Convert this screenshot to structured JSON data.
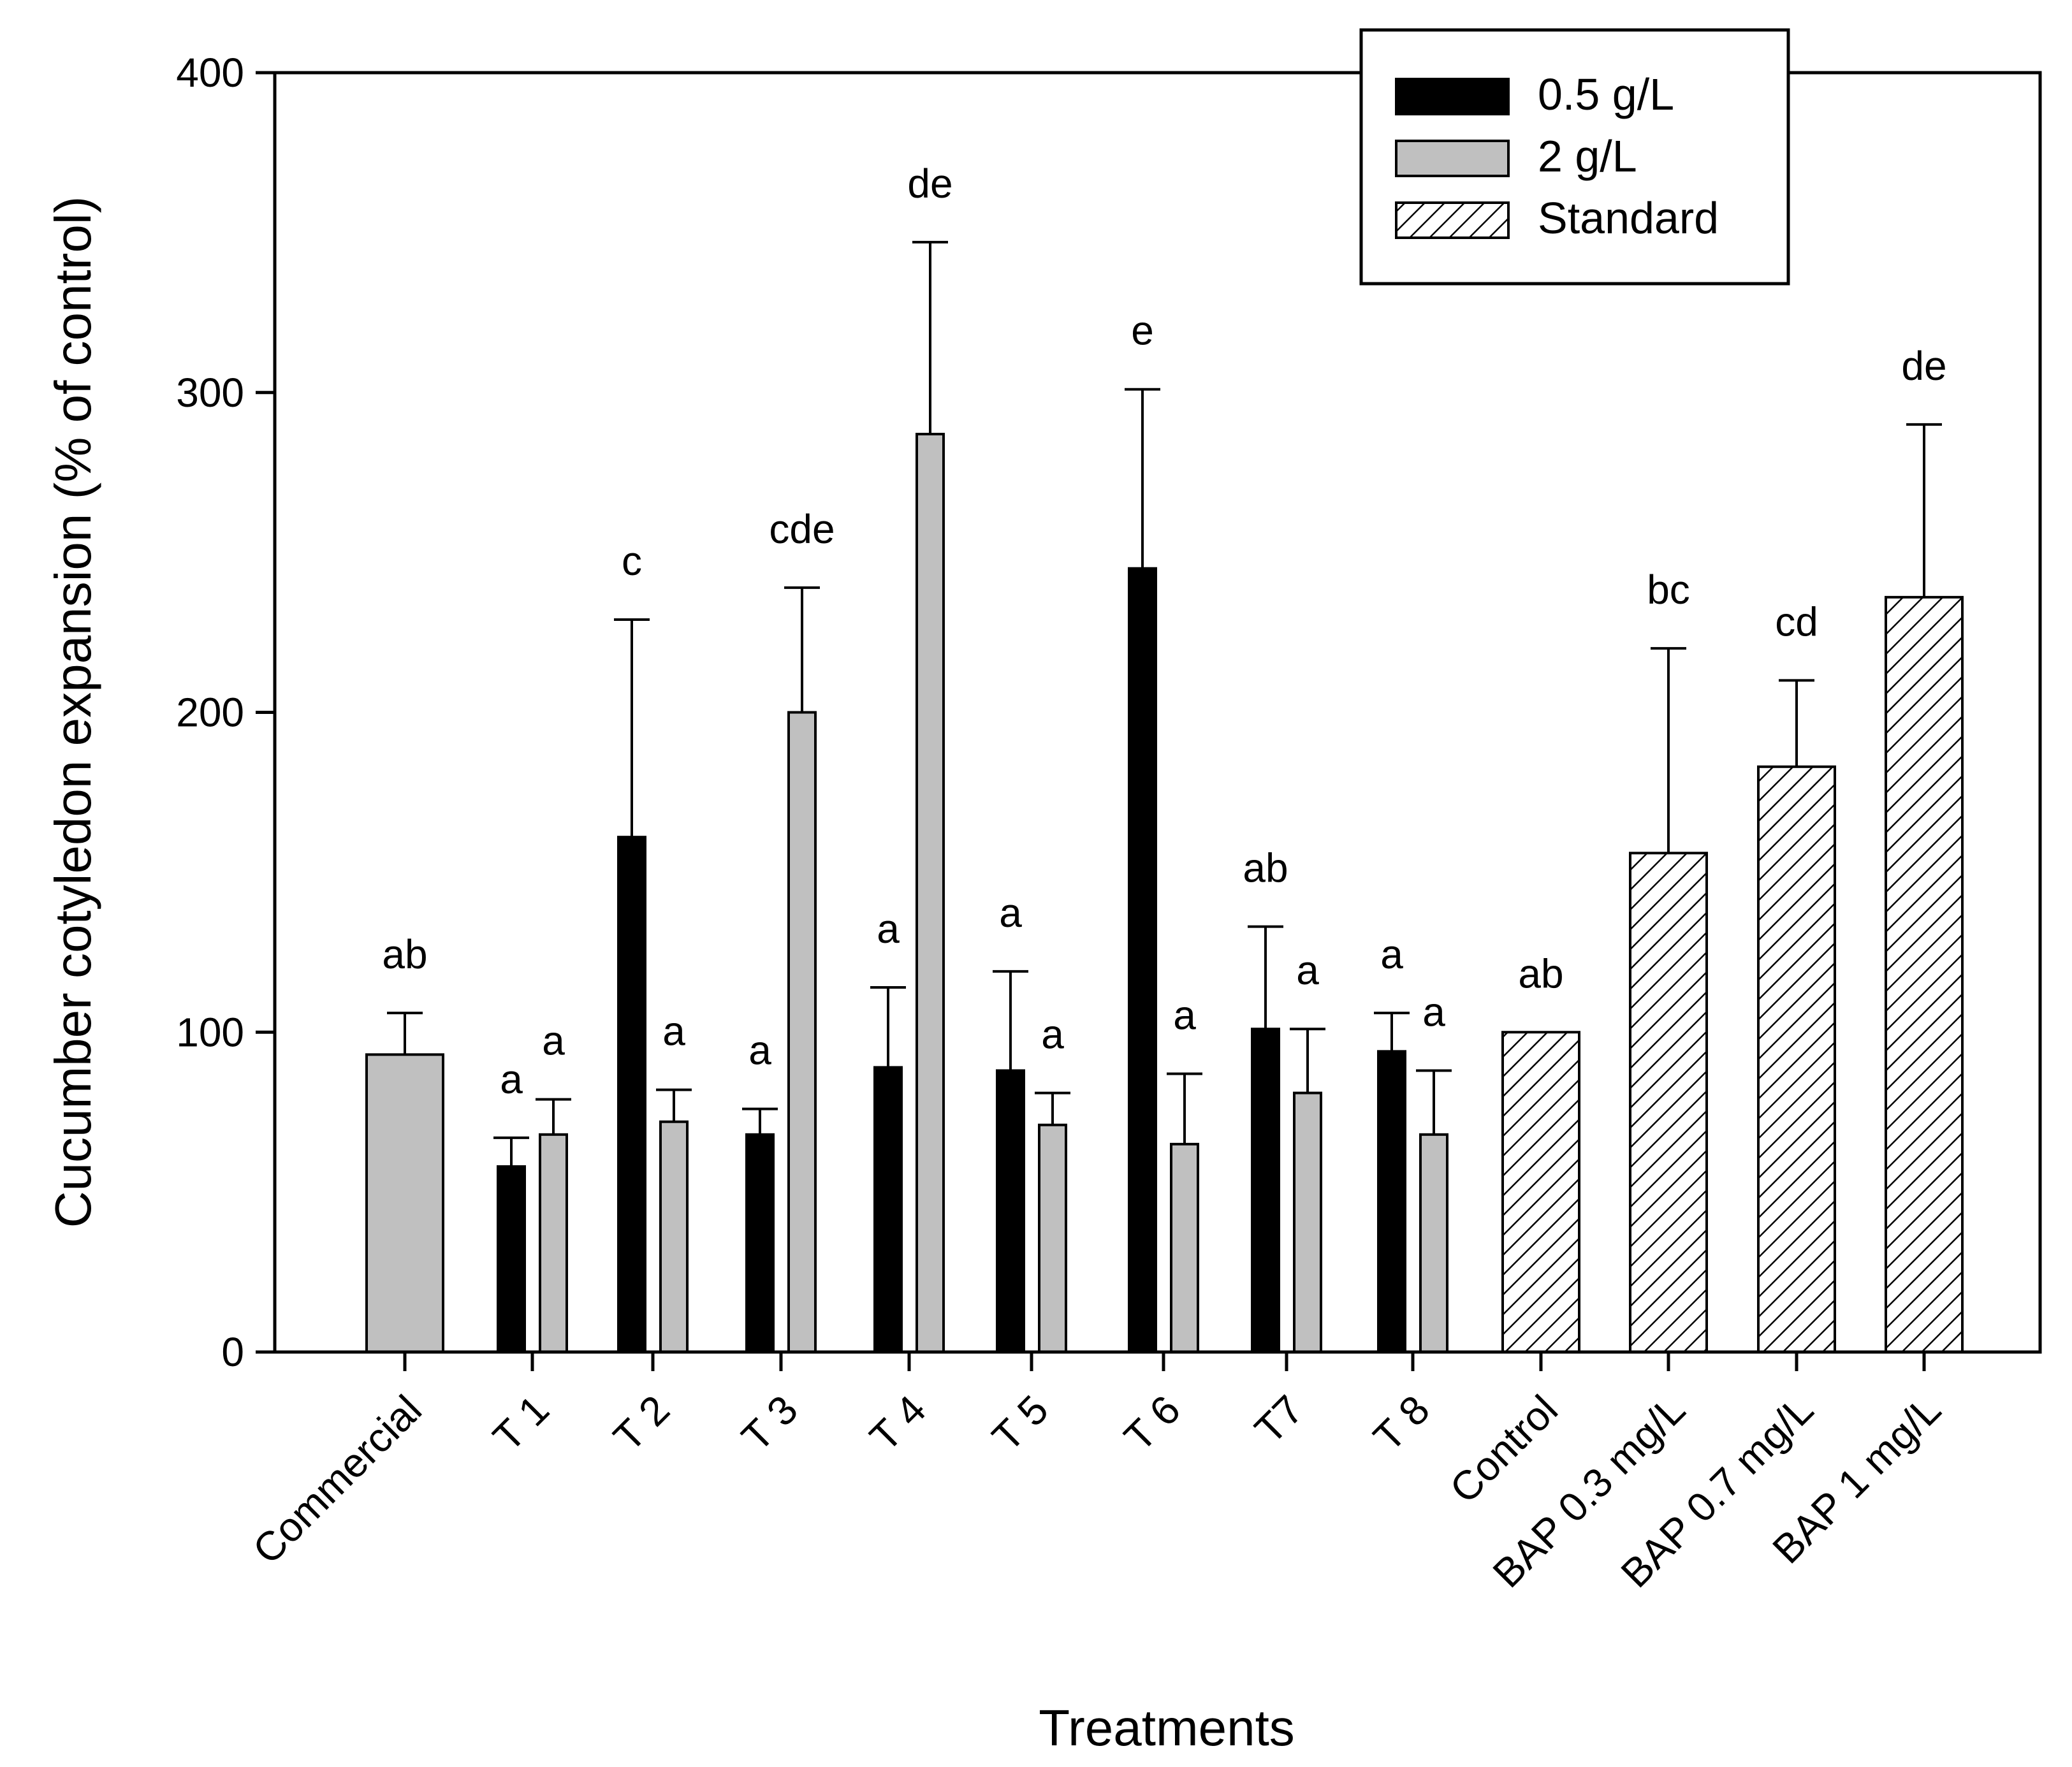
{
  "chart_data": {
    "type": "bar",
    "title": "",
    "xlabel": "Treatments",
    "ylabel": "Cucumber cotyledon expansion (% of control)",
    "ylim": [
      0,
      400
    ],
    "yticks": [
      0,
      100,
      200,
      300,
      400
    ],
    "grid": false,
    "legend_position": "top-right",
    "categories": [
      "Commercial",
      "T 1",
      "T 2",
      "T 3",
      "T 4",
      "T 5",
      "T 6",
      "T7",
      "T 8",
      "Control",
      "BAP 0.3 mg/L",
      "BAP 0.7 mg/L",
      "BAP 1 mg/L"
    ],
    "series": [
      {
        "name": "0.5 g/L",
        "color": "#000000",
        "pattern": "solid",
        "values": [
          null,
          58,
          161,
          68,
          89,
          88,
          245,
          101,
          94,
          null,
          null,
          null,
          null
        ],
        "errors": [
          null,
          9,
          68,
          8,
          25,
          31,
          56,
          32,
          12,
          null,
          null,
          null,
          null
        ],
        "labels": [
          null,
          "a",
          "c",
          "a",
          "a",
          "a",
          "e",
          "ab",
          "a",
          null,
          null,
          null,
          null
        ]
      },
      {
        "name": "2 g/L",
        "color": "#c0c0c0",
        "pattern": "solid",
        "values": [
          93,
          68,
          72,
          200,
          287,
          71,
          65,
          81,
          68,
          null,
          null,
          null,
          null
        ],
        "errors": [
          13,
          11,
          10,
          39,
          60,
          10,
          22,
          20,
          20,
          null,
          null,
          null,
          null
        ],
        "labels": [
          "ab",
          "a",
          "a",
          "cde",
          "de",
          "a",
          "a",
          "a",
          "a",
          null,
          null,
          null,
          null
        ]
      },
      {
        "name": "Standard",
        "color": "#ffffff",
        "pattern": "hatched",
        "values": [
          null,
          null,
          null,
          null,
          null,
          null,
          null,
          null,
          null,
          100,
          156,
          183,
          236
        ],
        "errors": [
          null,
          null,
          null,
          null,
          null,
          null,
          null,
          null,
          null,
          0,
          64,
          27,
          54
        ],
        "labels": [
          null,
          null,
          null,
          null,
          null,
          null,
          null,
          null,
          null,
          "ab",
          "bc",
          "cd",
          "de"
        ]
      }
    ]
  }
}
